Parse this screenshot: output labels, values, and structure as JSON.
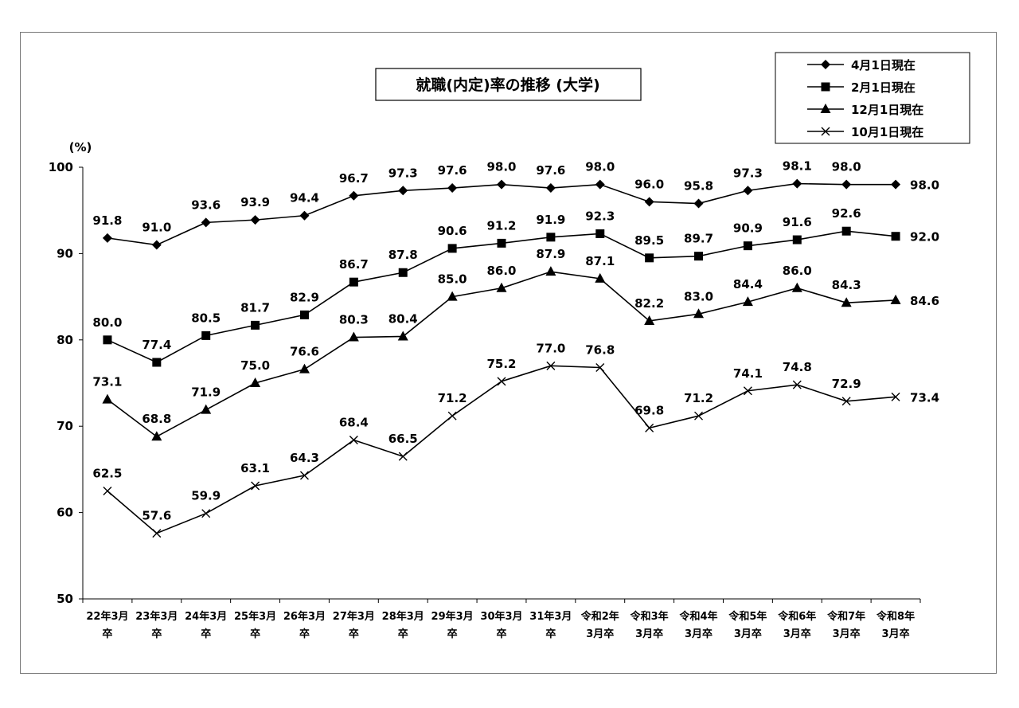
{
  "chart_data": {
    "type": "line",
    "title": "就職(内定)率の推移 (大学)",
    "ylabel": "(%)",
    "ylim": [
      50,
      100
    ],
    "yticks": [
      50,
      60,
      70,
      80,
      90,
      100
    ],
    "grid": false,
    "legend_position": "top-right",
    "categories": [
      [
        "22年3月",
        "卒"
      ],
      [
        "23年3月",
        "卒"
      ],
      [
        "24年3月",
        "卒"
      ],
      [
        "25年3月",
        "卒"
      ],
      [
        "26年3月",
        "卒"
      ],
      [
        "27年3月",
        "卒"
      ],
      [
        "28年3月",
        "卒"
      ],
      [
        "29年3月",
        "卒"
      ],
      [
        "30年3月",
        "卒"
      ],
      [
        "31年3月",
        "卒"
      ],
      [
        "令和2年",
        "3月卒"
      ],
      [
        "令和3年",
        "3月卒"
      ],
      [
        "令和4年",
        "3月卒"
      ],
      [
        "令和5年",
        "3月卒"
      ],
      [
        "令和6年",
        "3月卒"
      ],
      [
        "令和7年",
        "3月卒"
      ],
      [
        "令和8年",
        "3月卒"
      ]
    ],
    "series": [
      {
        "name": "4月1日現在",
        "marker": "diamond",
        "values": [
          91.8,
          91.0,
          93.6,
          93.9,
          94.4,
          96.7,
          97.3,
          97.6,
          98.0,
          97.6,
          98.0,
          96.0,
          95.8,
          97.3,
          98.1,
          98.0,
          98.0
        ],
        "labels": [
          "91.8",
          "91.0",
          "93.6",
          "93.9",
          "94.4",
          "96.7",
          "97.3",
          "97.6",
          "98.0",
          "97.6",
          "98.0",
          "96.0",
          "95.8",
          "97.3",
          "98.1",
          "98.0",
          "98.0"
        ]
      },
      {
        "name": "2月1日現在",
        "marker": "square",
        "values": [
          80.0,
          77.4,
          80.5,
          81.7,
          82.9,
          86.7,
          87.8,
          90.6,
          91.2,
          91.9,
          92.3,
          89.5,
          89.7,
          90.9,
          91.6,
          92.6,
          92.0
        ],
        "labels": [
          "80.0",
          "77.4",
          "80.5",
          "81.7",
          "82.9",
          "86.7",
          "87.8",
          "90.6",
          "91.2",
          "91.9",
          "92.3",
          "89.5",
          "89.7",
          "90.9",
          "91.6",
          "92.6",
          "92.0"
        ]
      },
      {
        "name": "12月1日現在",
        "marker": "triangle",
        "values": [
          73.1,
          68.8,
          71.9,
          75.0,
          76.6,
          80.3,
          80.4,
          85.0,
          86.0,
          87.9,
          87.1,
          82.2,
          83.0,
          84.4,
          86.0,
          84.3,
          84.6
        ],
        "labels": [
          "73.1",
          "68.8",
          "71.9",
          "75.0",
          "76.6",
          "80.3",
          "80.4",
          "85.0",
          "86.0",
          "87.9",
          "87.1",
          "82.2",
          "83.0",
          "84.4",
          "86.0",
          "84.3",
          "84.6"
        ]
      },
      {
        "name": "10月1日現在",
        "marker": "x",
        "values": [
          62.5,
          57.6,
          59.9,
          63.1,
          64.3,
          68.4,
          66.5,
          71.2,
          75.2,
          77.0,
          76.8,
          69.8,
          71.2,
          74.1,
          74.8,
          72.9,
          73.4
        ],
        "labels": [
          "62.5",
          "57.6",
          "59.9",
          "63.1",
          "64.3",
          "68.4",
          "66.5",
          "71.2",
          "75.2",
          "77.0",
          "76.8",
          "69.8",
          "71.2",
          "74.1",
          "74.8",
          "72.9",
          "73.4"
        ]
      }
    ]
  }
}
